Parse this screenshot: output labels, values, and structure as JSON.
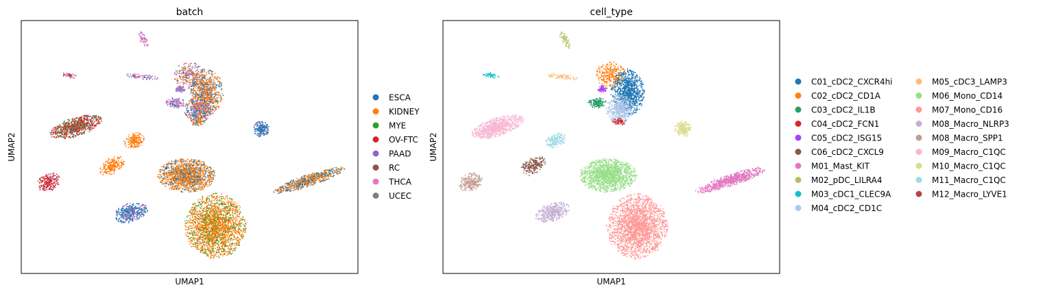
{
  "chart_data": [
    {
      "type": "scatter",
      "title": "batch",
      "xlabel": "UMAP1",
      "ylabel": "UMAP2",
      "grid": false,
      "ticks": false,
      "legend_placement": "right",
      "series": [
        {
          "name": "ESCA",
          "color": "#1f77b4"
        },
        {
          "name": "KIDNEY",
          "color": "#ff7f0e"
        },
        {
          "name": "MYE",
          "color": "#2ca02c"
        },
        {
          "name": "OV-FTC",
          "color": "#d62728"
        },
        {
          "name": "PAAD",
          "color": "#9467bd"
        },
        {
          "name": "RC",
          "color": "#8c564b"
        },
        {
          "name": "THCA",
          "color": "#e377c2"
        },
        {
          "name": "UCEC",
          "color": "#7f7f7f"
        }
      ]
    },
    {
      "type": "scatter",
      "title": "cell_type",
      "xlabel": "UMAP1",
      "ylabel": "UMAP2",
      "grid": false,
      "ticks": false,
      "legend_placement": "right",
      "series": [
        {
          "name": "C01_cDC2_CXCR4hi",
          "color": "#1f77b4"
        },
        {
          "name": "C02_cDC2_CD1A",
          "color": "#ff7f0e"
        },
        {
          "name": "C03_cDC2_IL1B",
          "color": "#279e68"
        },
        {
          "name": "C04_cDC2_FCN1",
          "color": "#d62728"
        },
        {
          "name": "C05_cDC2_ISG15",
          "color": "#aa40fc"
        },
        {
          "name": "C06_cDC2_CXCL9",
          "color": "#8c564b"
        },
        {
          "name": "M01_Mast_KIT",
          "color": "#e377c2"
        },
        {
          "name": "M02_pDC_LILRA4",
          "color": "#b5bd61"
        },
        {
          "name": "M03_cDC1_CLEC9A",
          "color": "#17becf"
        },
        {
          "name": "M04_cDC2_CD1C",
          "color": "#aec7e8"
        },
        {
          "name": "M05_cDC3_LAMP3",
          "color": "#ffbb78"
        },
        {
          "name": "M06_Mono_CD14",
          "color": "#98df8a"
        },
        {
          "name": "M07_Mono_CD16",
          "color": "#ff9896"
        },
        {
          "name": "M08_Macro_NLRP3",
          "color": "#c5b0d5"
        },
        {
          "name": "M08_Macro_SPP1",
          "color": "#c49c94"
        },
        {
          "name": "M09_Macro_C1QC",
          "color": "#f7b6d2"
        },
        {
          "name": "M10_Macro_C1QC",
          "color": "#dbdb8d"
        },
        {
          "name": "M11_Macro_C1QC",
          "color": "#9edae5"
        },
        {
          "name": "M12_Macro_LYVE1",
          "color": "#ad494a"
        }
      ]
    }
  ]
}
